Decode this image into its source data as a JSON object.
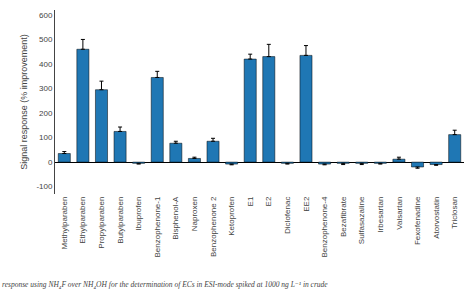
{
  "chart_data": {
    "type": "bar",
    "ylabel": "Signal response (% improvement)",
    "caption": "response using NH₄F over NH₄OH for the determination of ECs in ESI-mode spiked at 1000 ng L⁻¹ in crude",
    "categories": [
      "Methylparaben",
      "Ethylparaben",
      "Propylparaben",
      "Butylparaben",
      "Ibuprofen",
      "Benzophenone-1",
      "Bisphenol-A",
      "Naproxen",
      "Benzophenone 2",
      "Ketoprofen",
      "E1",
      "E2",
      "Diclofenac",
      "EE2",
      "Benzophenone-4",
      "Bezafibrate",
      "Sulfasazaline",
      "Irbesartan",
      "Valsartan",
      "Fexofenadine",
      "Atorvostatin",
      "Triclosan"
    ],
    "values": [
      35,
      460,
      295,
      125,
      -5,
      345,
      77,
      15,
      85,
      -8,
      420,
      430,
      -5,
      435,
      -8,
      -5,
      -5,
      -5,
      12,
      -20,
      -10,
      112
    ],
    "errors": [
      8,
      40,
      35,
      18,
      3,
      25,
      8,
      5,
      12,
      3,
      20,
      50,
      3,
      40,
      3,
      5,
      5,
      3,
      8,
      5,
      3,
      18
    ],
    "ylim": [
      -130,
      620
    ],
    "yticks": [
      -100,
      0,
      100,
      200,
      300,
      400,
      500,
      600
    ],
    "grid": false
  }
}
